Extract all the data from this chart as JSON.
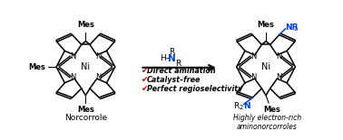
{
  "bg_color": "#ffffff",
  "black": "#000000",
  "blue": "#0044cc",
  "red": "#cc0000",
  "label_norcorrole": "Norcorrole",
  "label_product": "Highly electron-rich\naminonorcorroles",
  "bullet_items": [
    "Direct amination",
    "Catalyst–free",
    "Perfect regioselectivity"
  ],
  "check_char": "✔",
  "mes_label": "Mes",
  "ni_label": "Ni",
  "n_label": "N",
  "NR2_color": "#0044cc"
}
